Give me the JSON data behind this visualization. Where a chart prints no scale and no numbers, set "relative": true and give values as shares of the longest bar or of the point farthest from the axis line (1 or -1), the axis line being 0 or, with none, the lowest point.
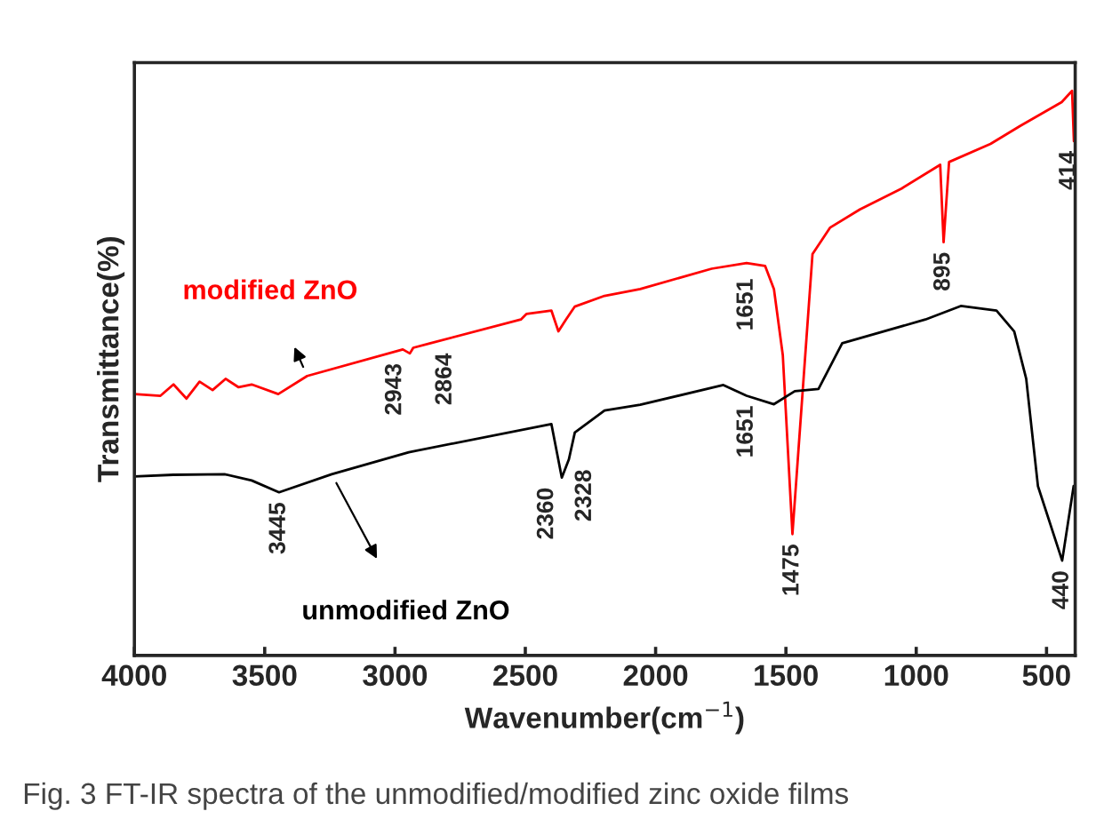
{
  "chart_data": {
    "type": "line",
    "relative": true,
    "xlabel": "Wavenumber(cm$^{−1}$)",
    "ylabel": "Transmittance(%)",
    "xlim": [
      4000,
      390
    ],
    "xticks": [
      4000,
      3500,
      3000,
      2500,
      2000,
      1500,
      1000,
      500
    ],
    "tick_labels": "x",
    "grid": false,
    "legend": false,
    "series": [
      {
        "name": "modified ZnO",
        "color": "#ff0000",
        "x": [
          4000,
          3900,
          3850,
          3800,
          3750,
          3700,
          3650,
          3600,
          3550,
          3448,
          3337,
          2970,
          2943,
          2930,
          2864,
          2517,
          2495,
          2400,
          2373,
          2344,
          2310,
          2196,
          2059,
          1785,
          1651,
          1580,
          1546,
          1512,
          1475,
          1421,
          1398,
          1330,
          1216,
          1056,
          908,
          895,
          874,
          715,
          601,
          442,
          402,
          395
        ],
        "values": [
          0.463,
          0.46,
          0.48,
          0.455,
          0.485,
          0.47,
          0.49,
          0.475,
          0.48,
          0.463,
          0.495,
          0.542,
          0.535,
          0.545,
          0.553,
          0.595,
          0.605,
          0.611,
          0.574,
          0.595,
          0.618,
          0.637,
          0.649,
          0.685,
          0.695,
          0.69,
          0.649,
          0.532,
          0.215,
          0.563,
          0.711,
          0.758,
          0.79,
          0.827,
          0.869,
          0.732,
          0.874,
          0.906,
          0.938,
          0.98,
          1.0,
          0.911
        ]
      },
      {
        "name": "unmodified ZnO",
        "color": "#000000",
        "x": [
          4000,
          3850,
          3654,
          3550,
          3445,
          3243,
          2947,
          2400,
          2360,
          2333,
          2310,
          2196,
          2059,
          1740,
          1651,
          1546,
          1466,
          1375,
          1284,
          965,
          829,
          692,
          624,
          578,
          533,
          440,
          396
        ],
        "values": [
          0.317,
          0.32,
          0.321,
          0.31,
          0.289,
          0.321,
          0.36,
          0.41,
          0.315,
          0.347,
          0.395,
          0.434,
          0.444,
          0.479,
          0.46,
          0.445,
          0.468,
          0.472,
          0.553,
          0.595,
          0.619,
          0.611,
          0.574,
          0.49,
          0.3,
          0.168,
          0.3
        ]
      }
    ],
    "annotations": [
      {
        "text": "3445",
        "x": 3445,
        "y": 0.289
      },
      {
        "text": "2943",
        "x": 2943,
        "y": 0.535
      },
      {
        "text": "2864",
        "x": 2864,
        "y": 0.553
      },
      {
        "text": "2360",
        "x": 2360,
        "y": 0.315
      },
      {
        "text": "2328",
        "x": 2328,
        "y": 0.347
      },
      {
        "text": "1651",
        "x": 1651,
        "y": 0.685
      },
      {
        "text": "1651",
        "x": 1651,
        "y": 0.46
      },
      {
        "text": "1475",
        "x": 1475,
        "y": 0.215
      },
      {
        "text": "895",
        "x": 895,
        "y": 0.732
      },
      {
        "text": "414",
        "x": 414,
        "y": 0.911
      },
      {
        "text": "440",
        "x": 440,
        "y": 0.168
      },
      "Fig. 3 FT-IR spectra of the unmodified/modified zinc oxide films"
    ]
  }
}
